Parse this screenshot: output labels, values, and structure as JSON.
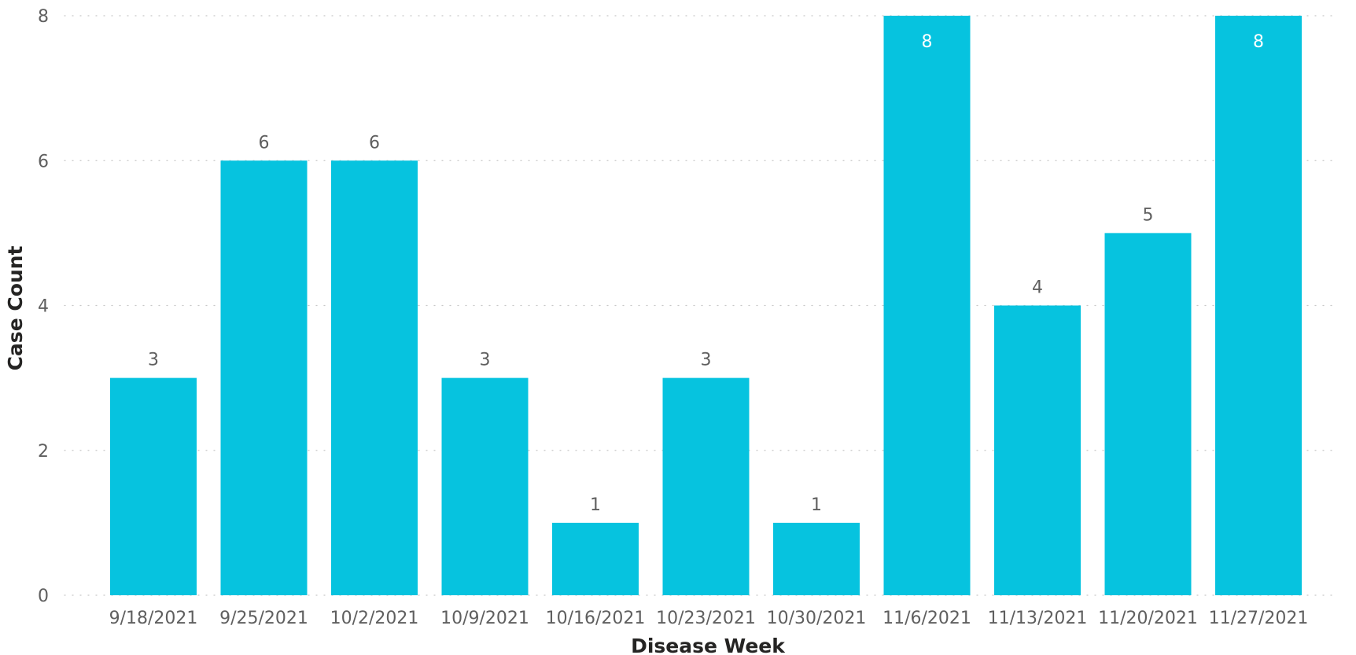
{
  "chart_data": {
    "type": "bar",
    "categories": [
      "9/18/2021",
      "9/25/2021",
      "10/2/2021",
      "10/9/2021",
      "10/16/2021",
      "10/23/2021",
      "10/30/2021",
      "11/6/2021",
      "11/13/2021",
      "11/20/2021",
      "11/27/2021"
    ],
    "values": [
      3,
      6,
      6,
      3,
      1,
      3,
      1,
      8,
      4,
      5,
      8
    ],
    "title": "",
    "xlabel": "Disease Week",
    "ylabel": "Case Count",
    "ylim": [
      0,
      8
    ],
    "yticks": [
      0,
      2,
      4,
      6,
      8
    ],
    "grid": true,
    "bar_color": "#06C3DF",
    "data_labels": true
  }
}
